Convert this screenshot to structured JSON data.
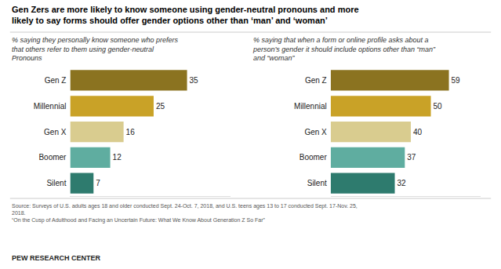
{
  "title": "Gen Zers are more likely to know someone using gender-neutral pronouns and more\nlikely to say forms should offer gender options other than ‘man’ and ‘woman’",
  "annotations": [
    "Source: Surveys of U.S. adults ages 18 and older conducted Sept. 24-Oct. 7, 2018, and U.S. teens ages 13 to 17 conducted Sept. 17-Nov. 25,\n2018.\n“On the Cusp of Adulthood and Facing an Uncertain Future: What We Know About Generation Z So Far”",
    "PEW RESEARCH CENTER"
  ],
  "chart_data": [
    {
      "type": "bar",
      "orientation": "horizontal",
      "subtitle": "% saying they personally know someone who prefers\nthat others refer to them using gender-neutral\nPronouns",
      "categories": [
        "Gen Z",
        "Millennial",
        "Gen X",
        "Boomer",
        "Silent"
      ],
      "values": [
        35,
        25,
        16,
        12,
        7
      ],
      "colors": [
        "#8B7320",
        "#C9A227",
        "#D9CC8F",
        "#5FADA0",
        "#2E7B6E"
      ],
      "xlim": [
        0,
        48
      ],
      "grid": false,
      "data_labels": true,
      "tick_labels": "y"
    },
    {
      "type": "bar",
      "orientation": "horizontal",
      "subtitle": "% saying that when a form or online profile asks about a\nperson’s gender it should include options other than “man”\nand “woman”",
      "categories": [
        "Gen Z",
        "Millennial",
        "Gen X",
        "Boomer",
        "Silent"
      ],
      "values": [
        59,
        50,
        40,
        37,
        32
      ],
      "colors": [
        "#8B7320",
        "#C9A227",
        "#D9CC8F",
        "#5FADA0",
        "#2E7B6E"
      ],
      "xlim": [
        0,
        75
      ],
      "grid": false,
      "data_labels": true,
      "tick_labels": "y"
    }
  ]
}
